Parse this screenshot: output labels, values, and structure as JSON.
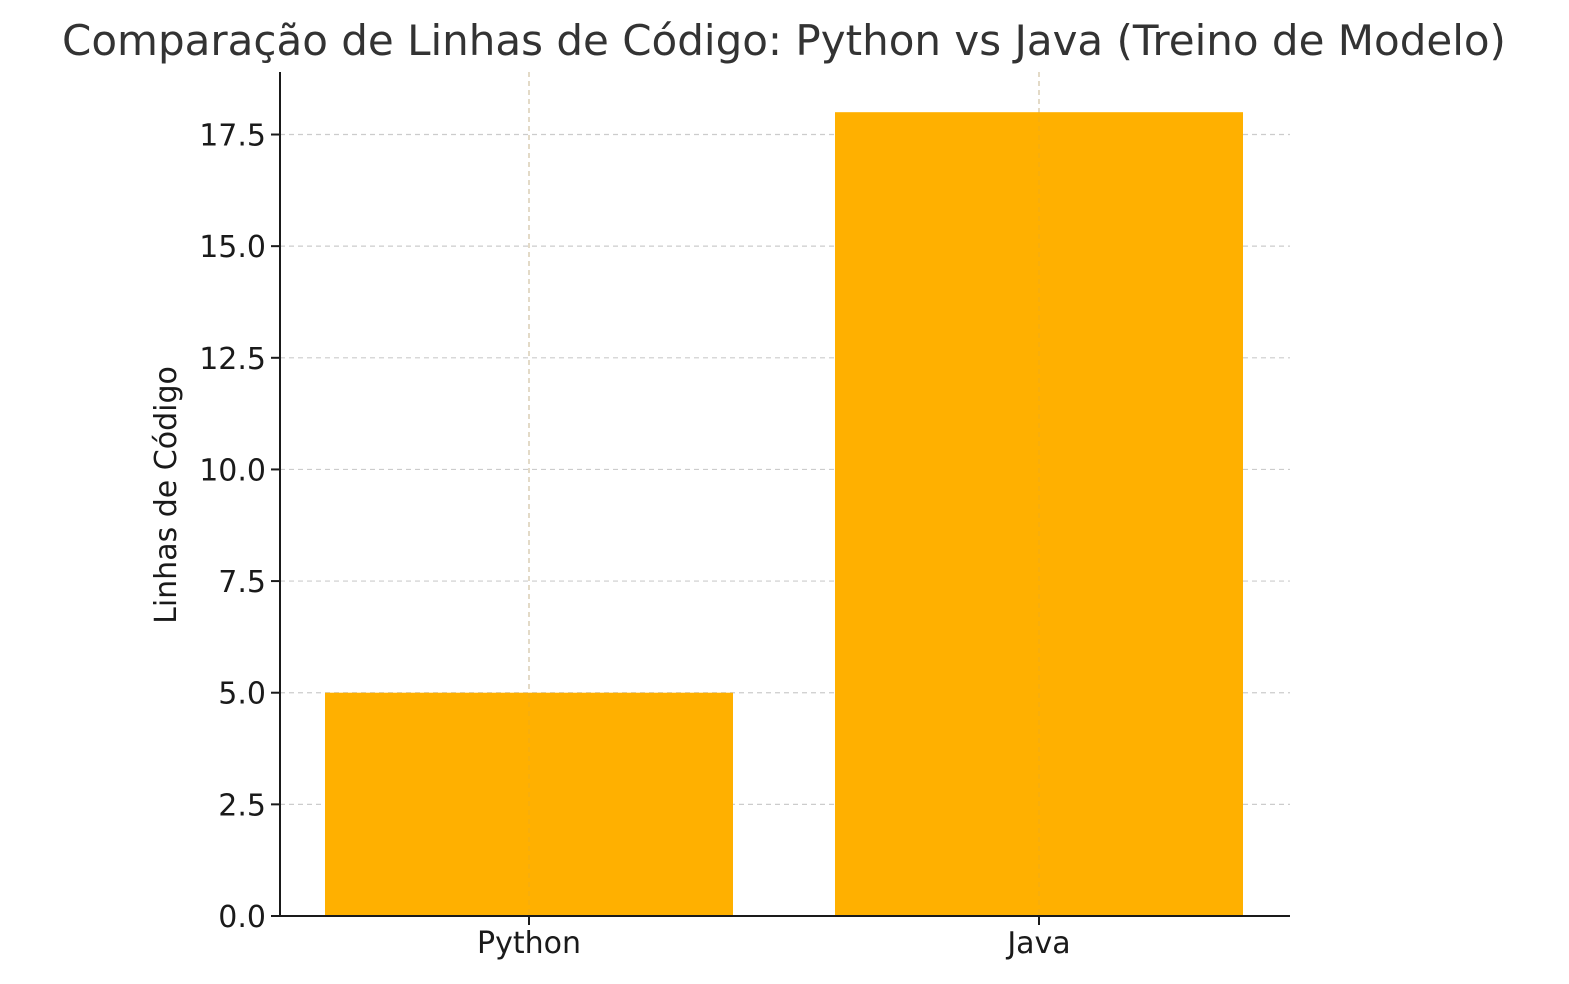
{
  "chart_data": {
    "type": "bar",
    "title": "Comparação de Linhas de Código: Python vs Java (Treino de Modelo)",
    "xlabel": "",
    "ylabel": "Linhas de Código",
    "categories": [
      "Python",
      "Java"
    ],
    "values": [
      5,
      18
    ],
    "ylim": [
      0,
      18.9
    ],
    "yticks": [
      0.0,
      2.5,
      5.0,
      7.5,
      10.0,
      12.5,
      15.0,
      17.5
    ],
    "ytick_labels": [
      "0.0",
      "2.5",
      "5.0",
      "7.5",
      "10.0",
      "12.5",
      "15.0",
      "17.5"
    ],
    "grid": true,
    "bar_color": "#FFB000",
    "grid_color": "#cccccc",
    "text_color": "#333333"
  }
}
